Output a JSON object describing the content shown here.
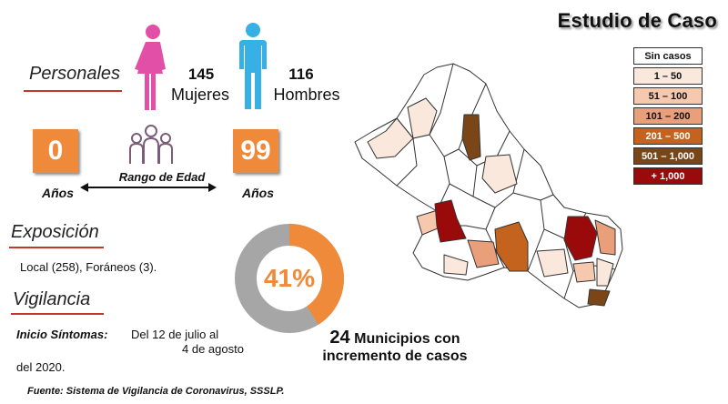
{
  "title": "Estudio de Caso",
  "personales": {
    "heading": "Personales",
    "mujeres_count": "145",
    "mujeres_label": "Mujeres",
    "hombres_count": "116",
    "hombres_label": "Hombres"
  },
  "edad": {
    "min": "0",
    "max": "99",
    "min_label": "Años",
    "max_label": "Años",
    "range_label": "Rango de Edad"
  },
  "exposicion": {
    "heading": "Exposición",
    "text": "Local (258), Foráneos (3)."
  },
  "vigilancia": {
    "heading": "Vigilancia",
    "inicio_label": "Inicio Síntomas:",
    "inicio_text1": "Del 12 de julio al",
    "inicio_text2": "4 de agosto",
    "inicio_text3": "del 2020."
  },
  "donut": {
    "percent": 41,
    "label": "41%",
    "colors": {
      "fill": "#ef8a3a",
      "rest": "#a6a6a6"
    }
  },
  "municipios": {
    "count": "24",
    "line1": "Municipios con",
    "line2": "incremento de casos"
  },
  "legend": [
    {
      "label": "Sin casos",
      "color": "#ffffff",
      "text_color": "#111111"
    },
    {
      "label": "1 – 50",
      "color": "#fbe8dc",
      "text_color": "#111111"
    },
    {
      "label": "51 – 100",
      "color": "#f6c9ae",
      "text_color": "#111111"
    },
    {
      "label": "101 – 200",
      "color": "#e9a07a",
      "text_color": "#111111"
    },
    {
      "label": "201 – 500",
      "color": "#c4631e",
      "text_color": "#ffffff"
    },
    {
      "label": "501 – 1,000",
      "color": "#7a4617",
      "text_color": "#ffffff"
    },
    {
      "label": "+ 1,000",
      "color": "#9b0a0a",
      "text_color": "#ffffff"
    }
  ],
  "source": "Fuente: Sistema de Vigilancia de Coronavirus, SSSLP.",
  "colors": {
    "female_icon": "#e24fa6",
    "male_icon": "#37b0e6",
    "people_icon": "#7a5e78",
    "accent": "#ef8a3a",
    "underline": "#c0392b"
  }
}
